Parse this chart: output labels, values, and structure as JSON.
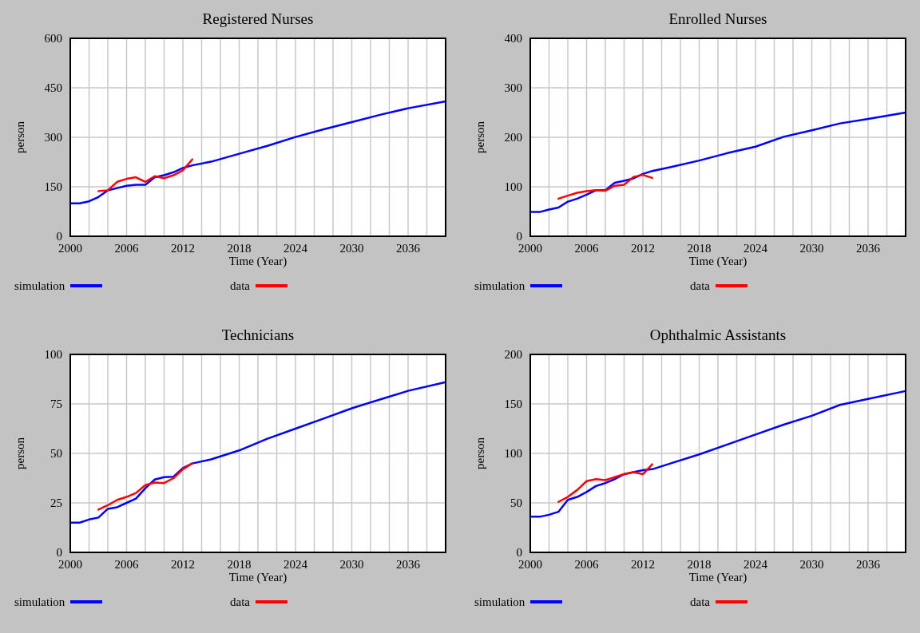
{
  "chart_data": [
    {
      "type": "line",
      "title": "Registered Nurses",
      "xlabel": "Time (Year)",
      "ylabel": "person",
      "xlim": [
        2000,
        2040
      ],
      "ylim": [
        0,
        600
      ],
      "yticks": [
        0,
        150,
        300,
        450,
        600
      ],
      "xticks": [
        2000,
        {
          "value": 2002,
          "label": null
        },
        {
          "value": 2004,
          "label": null
        },
        2006,
        {
          "value": 2008,
          "label": null
        },
        {
          "value": 2010,
          "label": null
        },
        2012,
        {
          "value": 2014,
          "label": null
        },
        {
          "value": 2016,
          "label": null
        },
        2018,
        {
          "value": 2020,
          "label": null
        },
        {
          "value": 2022,
          "label": null
        },
        2024,
        {
          "value": 2026,
          "label": null
        },
        {
          "value": 2028,
          "label": null
        },
        2030,
        {
          "value": 2032,
          "label": null
        },
        {
          "value": 2034,
          "label": null
        },
        2036,
        {
          "value": 2038,
          "label": null
        },
        {
          "value": 2040,
          "label": null
        }
      ],
      "grid": true,
      "legend": "bottom",
      "series": [
        {
          "name": "simulation",
          "color": "#0000ff",
          "x": [
            2000,
            2001,
            2002,
            2003,
            2004,
            2005,
            2006,
            2007,
            2008,
            2009,
            2010,
            2011,
            2012,
            2013,
            2015,
            2018,
            2021,
            2024,
            2027,
            2030,
            2033,
            2036,
            2040
          ],
          "values": [
            100,
            100,
            106,
            119,
            139,
            146,
            153,
            156,
            156,
            179,
            185,
            194,
            207,
            215,
            226,
            250,
            274,
            301,
            324,
            346,
            368,
            388,
            409
          ]
        },
        {
          "name": "data",
          "color": "#ff0000",
          "x": [
            2003,
            2004,
            2005,
            2006,
            2007,
            2008,
            2009,
            2010,
            2011,
            2012,
            2013
          ],
          "values": [
            137,
            139,
            165,
            174,
            179,
            165,
            182,
            176,
            185,
            200,
            233
          ]
        }
      ]
    },
    {
      "type": "line",
      "title": "Enrolled Nurses",
      "xlabel": "Time (Year)",
      "ylabel": "person",
      "xlim": [
        2000,
        2040
      ],
      "ylim": [
        0,
        400
      ],
      "yticks": [
        0,
        100,
        200,
        300,
        400
      ],
      "xticks": [
        2000,
        {
          "value": 2002,
          "label": null
        },
        {
          "value": 2004,
          "label": null
        },
        2006,
        {
          "value": 2008,
          "label": null
        },
        {
          "value": 2010,
          "label": null
        },
        2012,
        {
          "value": 2014,
          "label": null
        },
        {
          "value": 2016,
          "label": null
        },
        2018,
        {
          "value": 2020,
          "label": null
        },
        {
          "value": 2022,
          "label": null
        },
        2024,
        {
          "value": 2026,
          "label": null
        },
        {
          "value": 2028,
          "label": null
        },
        2030,
        {
          "value": 2032,
          "label": null
        },
        {
          "value": 2034,
          "label": null
        },
        2036,
        {
          "value": 2038,
          "label": null
        },
        {
          "value": 2040,
          "label": null
        }
      ],
      "grid": true,
      "legend": "bottom",
      "series": [
        {
          "name": "simulation",
          "color": "#0000ff",
          "x": [
            2000,
            2001,
            2002,
            2003,
            2004,
            2005,
            2006,
            2007,
            2008,
            2009,
            2010,
            2011,
            2012,
            2013,
            2015,
            2018,
            2021,
            2024,
            2027,
            2030,
            2033,
            2036,
            2040
          ],
          "values": [
            49,
            49,
            54,
            58,
            70,
            76,
            84,
            93,
            93,
            108,
            112,
            117,
            126,
            132,
            140,
            153,
            168,
            181,
            201,
            214,
            228,
            237,
            250
          ]
        },
        {
          "name": "data",
          "color": "#ff0000",
          "x": [
            2003,
            2004,
            2005,
            2006,
            2007,
            2008,
            2009,
            2010,
            2011,
            2012,
            2013
          ],
          "values": [
            76,
            82,
            88,
            91,
            93,
            92,
            102,
            104,
            120,
            124,
            118
          ]
        }
      ]
    },
    {
      "type": "line",
      "title": "Technicians",
      "xlabel": "Time (Year)",
      "ylabel": "person",
      "xlim": [
        2000,
        2040
      ],
      "ylim": [
        0,
        100
      ],
      "yticks": [
        0,
        25,
        50,
        75,
        100
      ],
      "xticks": [
        2000,
        {
          "value": 2002,
          "label": null
        },
        {
          "value": 2004,
          "label": null
        },
        2006,
        {
          "value": 2008,
          "label": null
        },
        {
          "value": 2010,
          "label": null
        },
        2012,
        {
          "value": 2014,
          "label": null
        },
        {
          "value": 2016,
          "label": null
        },
        2018,
        {
          "value": 2020,
          "label": null
        },
        {
          "value": 2022,
          "label": null
        },
        2024,
        {
          "value": 2026,
          "label": null
        },
        {
          "value": 2028,
          "label": null
        },
        2030,
        {
          "value": 2032,
          "label": null
        },
        {
          "value": 2034,
          "label": null
        },
        2036,
        {
          "value": 2038,
          "label": null
        },
        {
          "value": 2040,
          "label": null
        }
      ],
      "grid": true,
      "legend": "bottom",
      "series": [
        {
          "name": "simulation",
          "color": "#0000ff",
          "x": [
            2000,
            2001,
            2002,
            2003,
            2004,
            2005,
            2006,
            2007,
            2008,
            2009,
            2010,
            2011,
            2012,
            2013,
            2015,
            2018,
            2021,
            2024,
            2027,
            2030,
            2033,
            2036,
            2040
          ],
          "values": [
            15,
            15,
            16.6,
            17.6,
            22,
            22.8,
            25,
            27.2,
            32.4,
            36.8,
            38,
            38.2,
            42.6,
            44.9,
            47,
            51.5,
            57.4,
            62.5,
            67.6,
            72.8,
            77.2,
            81.6,
            86
          ]
        },
        {
          "name": "data",
          "color": "#ff0000",
          "x": [
            2003,
            2004,
            2005,
            2006,
            2007,
            2008,
            2009,
            2010,
            2011,
            2012,
            2013
          ],
          "values": [
            21.6,
            23.8,
            26.5,
            28,
            30,
            34,
            35.3,
            35,
            37.5,
            42,
            45
          ]
        }
      ]
    },
    {
      "type": "line",
      "title": "Ophthalmic  Assistants",
      "xlabel": "Time (Year)",
      "ylabel": "person",
      "xlim": [
        2000,
        2040
      ],
      "ylim": [
        0,
        200
      ],
      "yticks": [
        0,
        50,
        100,
        150,
        200
      ],
      "xticks": [
        2000,
        {
          "value": 2002,
          "label": null
        },
        {
          "value": 2004,
          "label": null
        },
        2006,
        {
          "value": 2008,
          "label": null
        },
        {
          "value": 2010,
          "label": null
        },
        2012,
        {
          "value": 2014,
          "label": null
        },
        {
          "value": 2016,
          "label": null
        },
        2018,
        {
          "value": 2020,
          "label": null
        },
        {
          "value": 2022,
          "label": null
        },
        2024,
        {
          "value": 2026,
          "label": null
        },
        {
          "value": 2028,
          "label": null
        },
        2030,
        {
          "value": 2032,
          "label": null
        },
        {
          "value": 2034,
          "label": null
        },
        2036,
        {
          "value": 2038,
          "label": null
        },
        {
          "value": 2040,
          "label": null
        }
      ],
      "grid": true,
      "legend": "bottom",
      "series": [
        {
          "name": "simulation",
          "color": "#0000ff",
          "x": [
            2000,
            2001,
            2002,
            2003,
            2004,
            2005,
            2006,
            2007,
            2008,
            2009,
            2010,
            2011,
            2012,
            2013,
            2015,
            2018,
            2021,
            2024,
            2027,
            2030,
            2033,
            2036,
            2040
          ],
          "values": [
            36,
            36,
            38,
            41,
            53,
            56,
            61,
            67,
            70,
            74,
            79,
            81,
            83,
            84,
            90,
            99,
            109,
            119,
            129,
            138,
            149,
            155,
            163
          ]
        },
        {
          "name": "data",
          "color": "#ff0000",
          "x": [
            2003,
            2004,
            2005,
            2006,
            2007,
            2008,
            2009,
            2010,
            2011,
            2012,
            2013
          ],
          "values": [
            51,
            56,
            63,
            72,
            74,
            73,
            76,
            79,
            81,
            79,
            89
          ]
        }
      ]
    }
  ]
}
